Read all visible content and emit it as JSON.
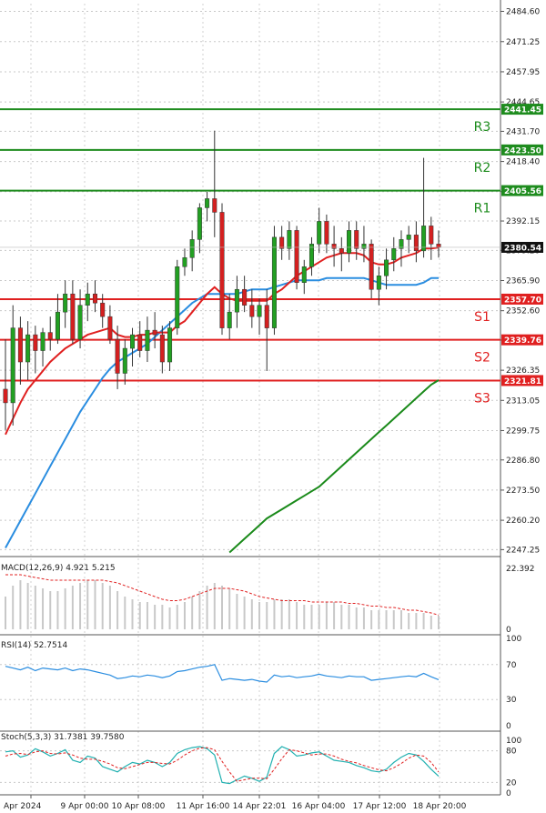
{
  "chart_data": [
    {
      "type": "candlestick",
      "panel": "price",
      "y_ticks": [
        "2484.60",
        "2471.25",
        "2457.95",
        "2444.65",
        "2431.70",
        "2418.40",
        "2405.10",
        "2392.15",
        "2379.20",
        "2365.90",
        "2352.60",
        "2339.65",
        "2326.35",
        "2313.05",
        "2299.75",
        "2286.80",
        "2273.50",
        "2260.20",
        "2247.25"
      ],
      "ylim": [
        2245,
        2488
      ],
      "levels": [
        {
          "label": "R3",
          "value": 2441.45,
          "tag": "2441.45",
          "color": "#1e8c1e"
        },
        {
          "label": "R2",
          "value": 2423.5,
          "tag": "2423.50",
          "color": "#1e8c1e"
        },
        {
          "label": "R1",
          "value": 2405.56,
          "tag": "2405.56",
          "color": "#1e8c1e"
        },
        {
          "label": "S1",
          "value": 2357.7,
          "tag": "2357.70",
          "color": "#e02020"
        },
        {
          "label": "S2",
          "value": 2339.76,
          "tag": "2339.76",
          "color": "#e02020"
        },
        {
          "label": "S3",
          "value": 2321.81,
          "tag": "2321.81",
          "color": "#e02020"
        }
      ],
      "last_price": 2380.54,
      "last_price_tag": "2380.54",
      "candles": [
        [
          2318,
          2340,
          2300,
          2312
        ],
        [
          2312,
          2355,
          2302,
          2345
        ],
        [
          2345,
          2350,
          2320,
          2330
        ],
        [
          2330,
          2348,
          2322,
          2342
        ],
        [
          2342,
          2346,
          2325,
          2335
        ],
        [
          2335,
          2345,
          2328,
          2343
        ],
        [
          2343,
          2350,
          2335,
          2340
        ],
        [
          2340,
          2360,
          2338,
          2352
        ],
        [
          2352,
          2366,
          2345,
          2360
        ],
        [
          2360,
          2366,
          2338,
          2340
        ],
        [
          2340,
          2362,
          2336,
          2355
        ],
        [
          2355,
          2365,
          2348,
          2360
        ],
        [
          2360,
          2366,
          2352,
          2356
        ],
        [
          2356,
          2360,
          2345,
          2350
        ],
        [
          2350,
          2355,
          2338,
          2340
        ],
        [
          2340,
          2346,
          2318,
          2325
        ],
        [
          2325,
          2340,
          2320,
          2336
        ],
        [
          2336,
          2345,
          2328,
          2342
        ],
        [
          2342,
          2348,
          2332,
          2335
        ],
        [
          2335,
          2350,
          2330,
          2344
        ],
        [
          2344,
          2352,
          2336,
          2342
        ],
        [
          2342,
          2346,
          2325,
          2330
        ],
        [
          2330,
          2348,
          2326,
          2345
        ],
        [
          2345,
          2375,
          2342,
          2372
        ],
        [
          2372,
          2380,
          2368,
          2376
        ],
        [
          2376,
          2388,
          2370,
          2384
        ],
        [
          2384,
          2400,
          2378,
          2398
        ],
        [
          2398,
          2405,
          2392,
          2402
        ],
        [
          2402,
          2432,
          2385,
          2396
        ],
        [
          2396,
          2400,
          2342,
          2345
        ],
        [
          2345,
          2360,
          2340,
          2352
        ],
        [
          2352,
          2368,
          2345,
          2362
        ],
        [
          2362,
          2368,
          2352,
          2355
        ],
        [
          2355,
          2362,
          2345,
          2350
        ],
        [
          2350,
          2358,
          2342,
          2355
        ],
        [
          2355,
          2362,
          2326,
          2345
        ],
        [
          2345,
          2390,
          2342,
          2385
        ],
        [
          2385,
          2390,
          2375,
          2380
        ],
        [
          2380,
          2392,
          2375,
          2388
        ],
        [
          2388,
          2390,
          2362,
          2365
        ],
        [
          2365,
          2375,
          2360,
          2372
        ],
        [
          2372,
          2385,
          2368,
          2382
        ],
        [
          2382,
          2398,
          2378,
          2392
        ],
        [
          2392,
          2395,
          2378,
          2382
        ],
        [
          2382,
          2390,
          2372,
          2380
        ],
        [
          2380,
          2385,
          2370,
          2378
        ],
        [
          2378,
          2392,
          2374,
          2388
        ],
        [
          2388,
          2392,
          2375,
          2380
        ],
        [
          2380,
          2390,
          2374,
          2382
        ],
        [
          2382,
          2384,
          2358,
          2362
        ],
        [
          2362,
          2372,
          2355,
          2368
        ],
        [
          2368,
          2380,
          2362,
          2375
        ],
        [
          2375,
          2385,
          2370,
          2380
        ],
        [
          2380,
          2388,
          2372,
          2384
        ],
        [
          2384,
          2390,
          2378,
          2386
        ],
        [
          2386,
          2392,
          2374,
          2379
        ],
        [
          2379,
          2420,
          2376,
          2390
        ],
        [
          2390,
          2394,
          2375,
          2382
        ],
        [
          2382,
          2388,
          2376,
          2380.54
        ]
      ],
      "ma_fast": [
        2298,
        2305,
        2312,
        2318,
        2322,
        2326,
        2330,
        2333,
        2336,
        2338,
        2340,
        2342,
        2343,
        2344,
        2345,
        2342,
        2341,
        2341,
        2342,
        2342,
        2343,
        2343,
        2343,
        2346,
        2348,
        2352,
        2356,
        2360,
        2363,
        2360,
        2358,
        2357,
        2357,
        2357,
        2357,
        2357,
        2360,
        2362,
        2365,
        2368,
        2370,
        2372,
        2374,
        2376,
        2377,
        2378,
        2378,
        2378,
        2377,
        2374,
        2373,
        2373,
        2374,
        2376,
        2377,
        2378,
        2380,
        2380,
        2380.5
      ],
      "ma_mid": [
        2248,
        2254,
        2260,
        2266,
        2272,
        2278,
        2284,
        2290,
        2296,
        2302,
        2308,
        2313,
        2318,
        2323,
        2327,
        2330,
        2332,
        2334,
        2336,
        2338,
        2341,
        2344,
        2347,
        2350,
        2353,
        2356,
        2358,
        2360,
        2360,
        2360,
        2360,
        2360,
        2361,
        2362,
        2362,
        2362,
        2363,
        2364,
        2365,
        2366,
        2366,
        2366,
        2366,
        2367,
        2367,
        2367,
        2367,
        2367,
        2367,
        2366,
        2365,
        2364,
        2364,
        2364,
        2364,
        2364,
        2365,
        2367,
        2367
      ],
      "ma_slow_start_index": 30,
      "ma_slow": [
        2246,
        2249,
        2252,
        2255,
        2258,
        2261,
        2263,
        2265,
        2267,
        2269,
        2271,
        2273,
        2275,
        2278,
        2281,
        2284,
        2287,
        2290,
        2293,
        2296,
        2299,
        2302,
        2305,
        2308,
        2311,
        2314,
        2317,
        2320,
        2322
      ],
      "colors": {
        "up": "#22a022",
        "down": "#d42020",
        "ma_fast": "#e02020",
        "ma_mid": "#2a8de0",
        "ma_slow": "#1a8a1a"
      }
    },
    {
      "type": "bar",
      "panel": "macd",
      "label": "MACD(12,26,9) 4.921 5.215",
      "y_ticks": [
        "22.392",
        "0"
      ],
      "histogram": [
        12,
        16,
        18,
        17,
        16,
        15,
        14,
        14,
        15,
        16,
        17,
        18,
        18,
        17,
        16,
        14,
        12,
        11,
        10,
        10,
        9,
        9,
        8,
        9,
        10,
        12,
        14,
        16,
        17,
        16,
        15,
        13,
        12,
        11,
        10,
        10,
        11,
        11,
        11,
        10,
        9,
        9,
        9,
        10,
        10,
        9,
        9,
        8,
        8,
        7,
        7,
        7,
        7,
        7,
        6,
        6,
        6,
        5,
        5
      ],
      "signal": [
        20,
        20,
        20,
        19.5,
        19,
        18.5,
        18,
        18,
        18,
        18,
        18,
        18,
        18,
        18,
        17.5,
        17,
        16,
        15,
        14,
        13,
        12,
        11,
        10.5,
        10.5,
        11,
        12,
        13,
        14,
        15,
        15,
        15,
        14.5,
        14,
        13,
        12,
        11.5,
        11,
        10.5,
        10.5,
        10.5,
        10.5,
        10,
        10,
        10,
        10,
        10,
        9.5,
        9.5,
        9,
        8.5,
        8.5,
        8,
        8,
        7.5,
        7,
        7,
        6.5,
        6,
        5.2
      ],
      "ylim": [
        0,
        24
      ]
    },
    {
      "type": "line",
      "panel": "rsi",
      "label": "RSI(14) 52.7514",
      "y_ticks": [
        "100",
        "70",
        "30",
        "0"
      ],
      "values": [
        68,
        66,
        64,
        67,
        63,
        66,
        65,
        64,
        66,
        63,
        65,
        64,
        62,
        60,
        58,
        54,
        55,
        57,
        56,
        58,
        57,
        55,
        57,
        62,
        63,
        65,
        67,
        68,
        70,
        52,
        54,
        53,
        52,
        53,
        51,
        50,
        58,
        56,
        57,
        55,
        56,
        57,
        59,
        57,
        56,
        55,
        57,
        56,
        56,
        52,
        53,
        54,
        55,
        56,
        57,
        56,
        60,
        56,
        52.75
      ],
      "ylim": [
        0,
        100
      ]
    },
    {
      "type": "line",
      "panel": "stoch",
      "label": "Stoch(5,3,3) 31.7381 39.7580",
      "y_ticks": [
        "100",
        "80",
        "20",
        "0"
      ],
      "k": [
        78,
        80,
        68,
        72,
        84,
        78,
        70,
        75,
        82,
        62,
        58,
        70,
        66,
        50,
        45,
        40,
        50,
        58,
        55,
        62,
        58,
        50,
        58,
        75,
        82,
        86,
        88,
        84,
        72,
        20,
        18,
        25,
        32,
        28,
        22,
        30,
        75,
        88,
        82,
        70,
        72,
        76,
        78,
        70,
        62,
        60,
        58,
        52,
        48,
        42,
        40,
        45,
        58,
        68,
        75,
        72,
        60,
        45,
        31.74
      ],
      "d": [
        70,
        74,
        75,
        73,
        78,
        80,
        75,
        74,
        76,
        72,
        66,
        64,
        64,
        60,
        55,
        48,
        46,
        50,
        54,
        58,
        58,
        56,
        55,
        62,
        72,
        80,
        85,
        86,
        82,
        60,
        40,
        22,
        25,
        28,
        28,
        27,
        45,
        65,
        82,
        80,
        76,
        72,
        74,
        74,
        70,
        64,
        60,
        57,
        52,
        48,
        44,
        42,
        48,
        56,
        66,
        72,
        70,
        58,
        39.76
      ],
      "ylim": [
        0,
        100
      ]
    }
  ],
  "x_labels": [
    "Apr 2024",
    "9 Apr 00:00",
    "10 Apr 08:00",
    "11 Apr 16:00",
    "14 Apr 22:01",
    "16 Apr 04:00",
    "17 Apr 12:00",
    "18 Apr 20:00"
  ]
}
